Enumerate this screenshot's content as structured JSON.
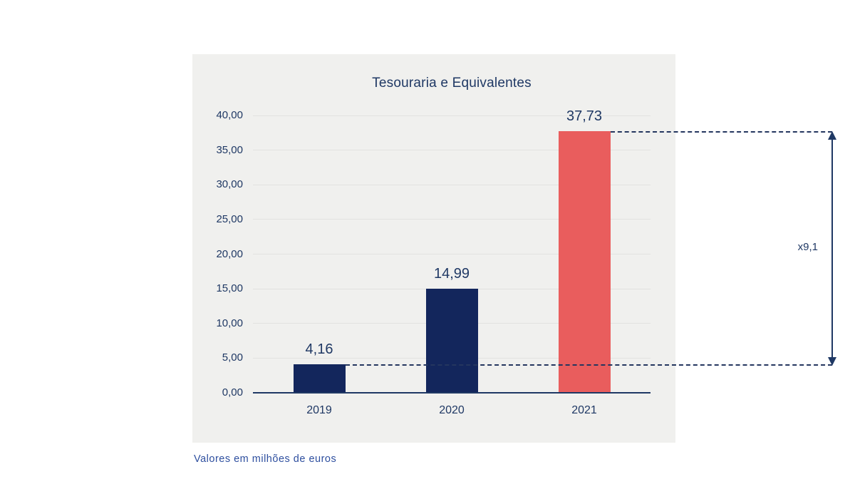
{
  "chart_data": {
    "type": "bar",
    "title": "Tesouraria e Equivalentes",
    "categories": [
      "2019",
      "2020",
      "2021"
    ],
    "values": [
      4.16,
      14.99,
      37.73
    ],
    "value_labels": [
      "4,16",
      "14,99",
      "37,73"
    ],
    "bar_colors": [
      "#13265c",
      "#13265c",
      "#e95d5d"
    ],
    "xlabel": "",
    "ylabel": "",
    "ylim": [
      0,
      40
    ],
    "yticks": [
      0,
      5,
      10,
      15,
      20,
      25,
      30,
      35,
      40
    ],
    "ytick_labels": [
      "0,00",
      "5,00",
      "10,00",
      "15,00",
      "20,00",
      "25,00",
      "30,00",
      "35,00",
      "40,00"
    ],
    "grid": true,
    "legend": false,
    "annotation": {
      "label": "x9,1",
      "from_value": 4.16,
      "to_value": 37.73,
      "from_category": "2019",
      "to_category": "2021"
    }
  },
  "footer": {
    "note": "Valores em milhões de euros"
  },
  "colors": {
    "panel_background": "#f0f0ee",
    "bar_navy": "#13265c",
    "bar_red": "#e95d5d",
    "text_navy": "#1f3864",
    "gridline": "#e2e2e0",
    "dashed_line": "#24365f",
    "footer_blue": "#2e4f9f"
  }
}
